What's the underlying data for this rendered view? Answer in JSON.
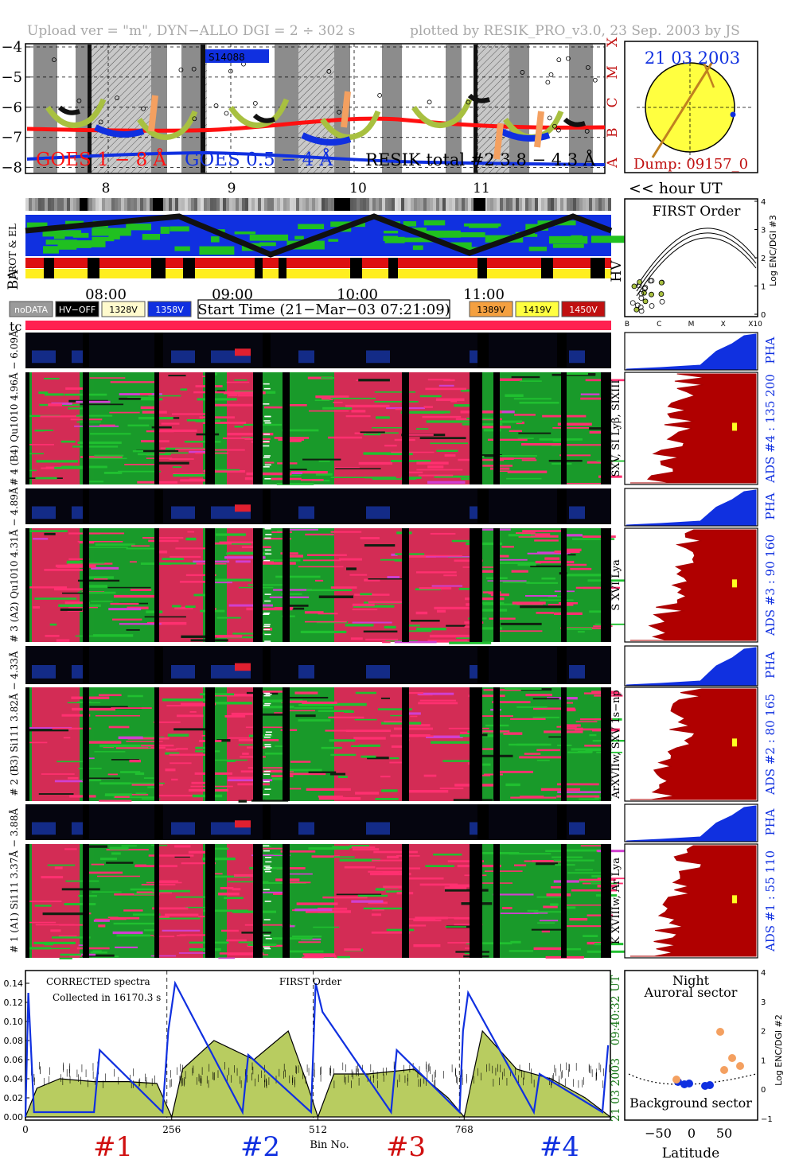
{
  "header": {
    "left": "Upload ver = \"m\", DYN−ALLO DGI =   2 ÷ 302 s",
    "right": "plotted by RESIK_PRO_v3.0, 23 Sep. 2003 by JS"
  },
  "goes": {
    "yticks": [
      "−4",
      "−5",
      "−6",
      "−7",
      "−8"
    ],
    "classes": [
      "X",
      "M",
      "C",
      "B",
      "A"
    ],
    "tag": "S14088",
    "legend_goes1": "GOES 1 − 8 Å",
    "legend_goes05": "GOES 0.5 − 4 Å",
    "legend_resik": "RESIK total #2  3.8 − 4.3 Å",
    "colors": {
      "goes1": "#ff1010",
      "goes05": "#1030e0",
      "resik": "#1a1a1a",
      "green": "#a8c040",
      "orange": "#f4a060"
    }
  },
  "sun": {
    "date": "21 03 2003",
    "dump": "Dump: 09157_0"
  },
  "hours": {
    "labels": [
      "8",
      "9",
      "10",
      "11"
    ],
    "unit": "<< hour UT"
  },
  "orbit": {
    "row1": "PROT & EL",
    "row2": "BA",
    "hv": "HV"
  },
  "first_order": {
    "title": "FIRST Order",
    "ylabel": "Log ENC/DGI #3",
    "yticks": [
      "4",
      "3",
      "2",
      "1",
      "0"
    ],
    "xticks": [
      "B",
      "C",
      "M",
      "X",
      "X10"
    ]
  },
  "times": {
    "labels": [
      "08:00",
      "09:00",
      "10:00",
      "11:00"
    ]
  },
  "legend_boxes": [
    {
      "label": "noDATA",
      "bg": "#9a9a9a",
      "fg": "#ffffff"
    },
    {
      "label": "HV−OFF",
      "bg": "#000000",
      "fg": "#ffffff"
    },
    {
      "label": "1328V",
      "bg": "#fffacd",
      "fg": "#000000"
    },
    {
      "label": "1358V",
      "bg": "#1030e0",
      "fg": "#ffffff"
    },
    {
      "label": "1389V",
      "bg": "#f4a040",
      "fg": "#000000"
    },
    {
      "label": "1419V",
      "bg": "#ffff40",
      "fg": "#000000"
    },
    {
      "label": "1450V",
      "bg": "#c01010",
      "fg": "#ffffff"
    }
  ],
  "start_time": "Start Time (21−Mar−03 07:21:09)",
  "tc": "tc",
  "channels": [
    {
      "pha_label": "# 4 (B4) Qu1010 4.96Å − 6.09Å",
      "spec_label": "SXV, SI Lyβ, SIXIII",
      "ads": "ADS #4 :   135 200",
      "pha": "PHA"
    },
    {
      "pha_label": "# 3 (A2) Qu1010 4.31Å − 4.89Å",
      "spec_label": "S XVI Lya",
      "ads": "ADS #3 :   90 160",
      "pha": "PHA"
    },
    {
      "pha_label": "# 2 (B3) Si111 3.82Å − 4.33Å",
      "spec_label": "ArXVIIw, SXV 1s−np",
      "ads": "ADS #2 :   80 165",
      "pha": "PHA"
    },
    {
      "pha_label": "# 1 (A1) Si111 3.37Å − 3.88Å",
      "spec_label": "K XVIIIw, Ar Lya",
      "ads": "ADS #1 :   55 110",
      "pha": "PHA"
    }
  ],
  "spectrum": {
    "note1": "CORRECTED spectra",
    "note2": "Collected in 16170.3 s",
    "first_order": "FIRST Order",
    "side_time": "09:40:32 UT",
    "side_date": "21 03 2003",
    "xlabel": "Bin No.",
    "yticks": [
      "0.14",
      "0.12",
      "0.10",
      "0.08",
      "0.06",
      "0.04",
      "0.02",
      "0.00"
    ],
    "xticks": [
      "0",
      "256",
      "512",
      "768"
    ],
    "segments": [
      "#1",
      "#2",
      "#3",
      "#4"
    ],
    "segment_colors": [
      "#d01010",
      "#1030e0",
      "#d01010",
      "#1030e0"
    ]
  },
  "map": {
    "night": "Night",
    "auroral": "Auroral sector",
    "background": "Background sector",
    "xlabel": "Latitude",
    "ylabel": "Log ENC/DGI #2",
    "xticks": [
      "−50",
      "0",
      "50"
    ],
    "yticks": [
      "4",
      "3",
      "2",
      "1",
      "0",
      "−1"
    ]
  },
  "chart_data": {
    "type": "line",
    "title": "",
    "xlabel": "Bin No.",
    "ylabel": "",
    "xlim": [
      0,
      1024
    ],
    "ylim": [
      0,
      0.15
    ],
    "xticks": [
      0,
      256,
      512,
      768
    ],
    "series": [
      {
        "name": "CORRECTED spectra",
        "bins": [
          0,
          20,
          60,
          120,
          180,
          230,
          256,
          275,
          330,
          400,
          460,
          490,
          512,
          540,
          600,
          680,
          740,
          768,
          800,
          860,
          920,
          980,
          1024
        ],
        "values": [
          0.0,
          0.03,
          0.04,
          0.037,
          0.037,
          0.035,
          0.0,
          0.05,
          0.08,
          0.06,
          0.09,
          0.04,
          0.0,
          0.045,
          0.045,
          0.05,
          0.02,
          0.0,
          0.09,
          0.05,
          0.04,
          0.02,
          0.0
        ]
      },
      {
        "name": "FIRST Order",
        "bins": [
          0,
          5,
          15,
          120,
          130,
          240,
          250,
          262,
          380,
          390,
          500,
          508,
          520,
          640,
          650,
          760,
          766,
          775,
          890,
          900,
          1010,
          1020
        ],
        "values": [
          0.0,
          0.13,
          0.005,
          0.005,
          0.07,
          0.005,
          0.09,
          0.14,
          0.005,
          0.065,
          0.005,
          0.14,
          0.11,
          0.005,
          0.07,
          0.005,
          0.09,
          0.13,
          0.005,
          0.045,
          0.005,
          0.075
        ]
      }
    ]
  }
}
